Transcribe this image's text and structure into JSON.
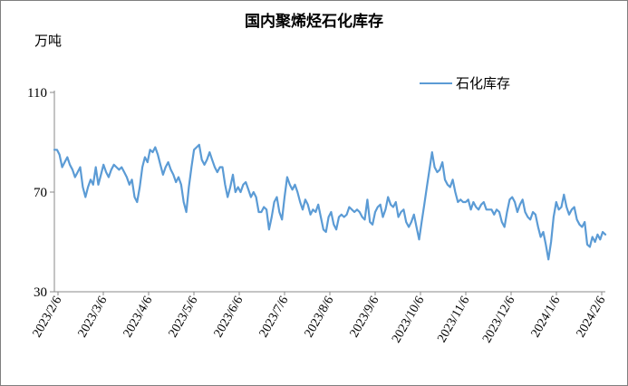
{
  "chart_data": {
    "type": "line",
    "title": "国内聚烯烃石化库存",
    "ylabel": "万吨",
    "ylim": [
      30,
      110
    ],
    "yticks": [
      30,
      70,
      110
    ],
    "xticks": [
      "2023/2/6",
      "2023/3/6",
      "2023/4/6",
      "2023/5/6",
      "2023/6/6",
      "2023/7/6",
      "2023/8/6",
      "2023/9/6",
      "2023/10/6",
      "2023/11/6",
      "2023/12/6",
      "2024/1/6",
      "2024/2/6"
    ],
    "grid": false,
    "legend_position": "top-right",
    "series": [
      {
        "name": "石化库存",
        "color": "#5b9bd5",
        "values": [
          87,
          87,
          85,
          80,
          82,
          84,
          81,
          79,
          76,
          78,
          80,
          72,
          68,
          72,
          75,
          73,
          80,
          73,
          77,
          81,
          78,
          76,
          79,
          81,
          80,
          79,
          80,
          78,
          76,
          73,
          75,
          68,
          66,
          72,
          80,
          84,
          82,
          87,
          86,
          88,
          85,
          81,
          77,
          80,
          82,
          79,
          77,
          74,
          76,
          73,
          66,
          62,
          72,
          80,
          87,
          88,
          89,
          83,
          81,
          83,
          86,
          83,
          80,
          78,
          80,
          80,
          73,
          68,
          72,
          77,
          70,
          72,
          70,
          73,
          74,
          71,
          68,
          70,
          68,
          62,
          62,
          64,
          63,
          55,
          60,
          66,
          68,
          62,
          59,
          68,
          76,
          73,
          71,
          73,
          70,
          66,
          63,
          67,
          65,
          61,
          63,
          62,
          65,
          60,
          55,
          54,
          60,
          62,
          57,
          55,
          60,
          61,
          60,
          61,
          64,
          63,
          62,
          63,
          62,
          60,
          59,
          67,
          58,
          57,
          62,
          64,
          65,
          60,
          63,
          68,
          65,
          64,
          66,
          60,
          62,
          63,
          58,
          56,
          58,
          61,
          56,
          51,
          58,
          65,
          72,
          79,
          86,
          80,
          78,
          79,
          82,
          75,
          73,
          72,
          75,
          70,
          66,
          67,
          66,
          66,
          67,
          63,
          66,
          64,
          63,
          65,
          66,
          63,
          63,
          63,
          61,
          63,
          62,
          58,
          56,
          62,
          67,
          68,
          66,
          62,
          65,
          67,
          62,
          60,
          59,
          62,
          61,
          56,
          52,
          54,
          49,
          43,
          50,
          60,
          66,
          63,
          64,
          69,
          64,
          61,
          63,
          64,
          59,
          57,
          56,
          58,
          49,
          48,
          52,
          50,
          53,
          51,
          54,
          53
        ]
      }
    ]
  }
}
